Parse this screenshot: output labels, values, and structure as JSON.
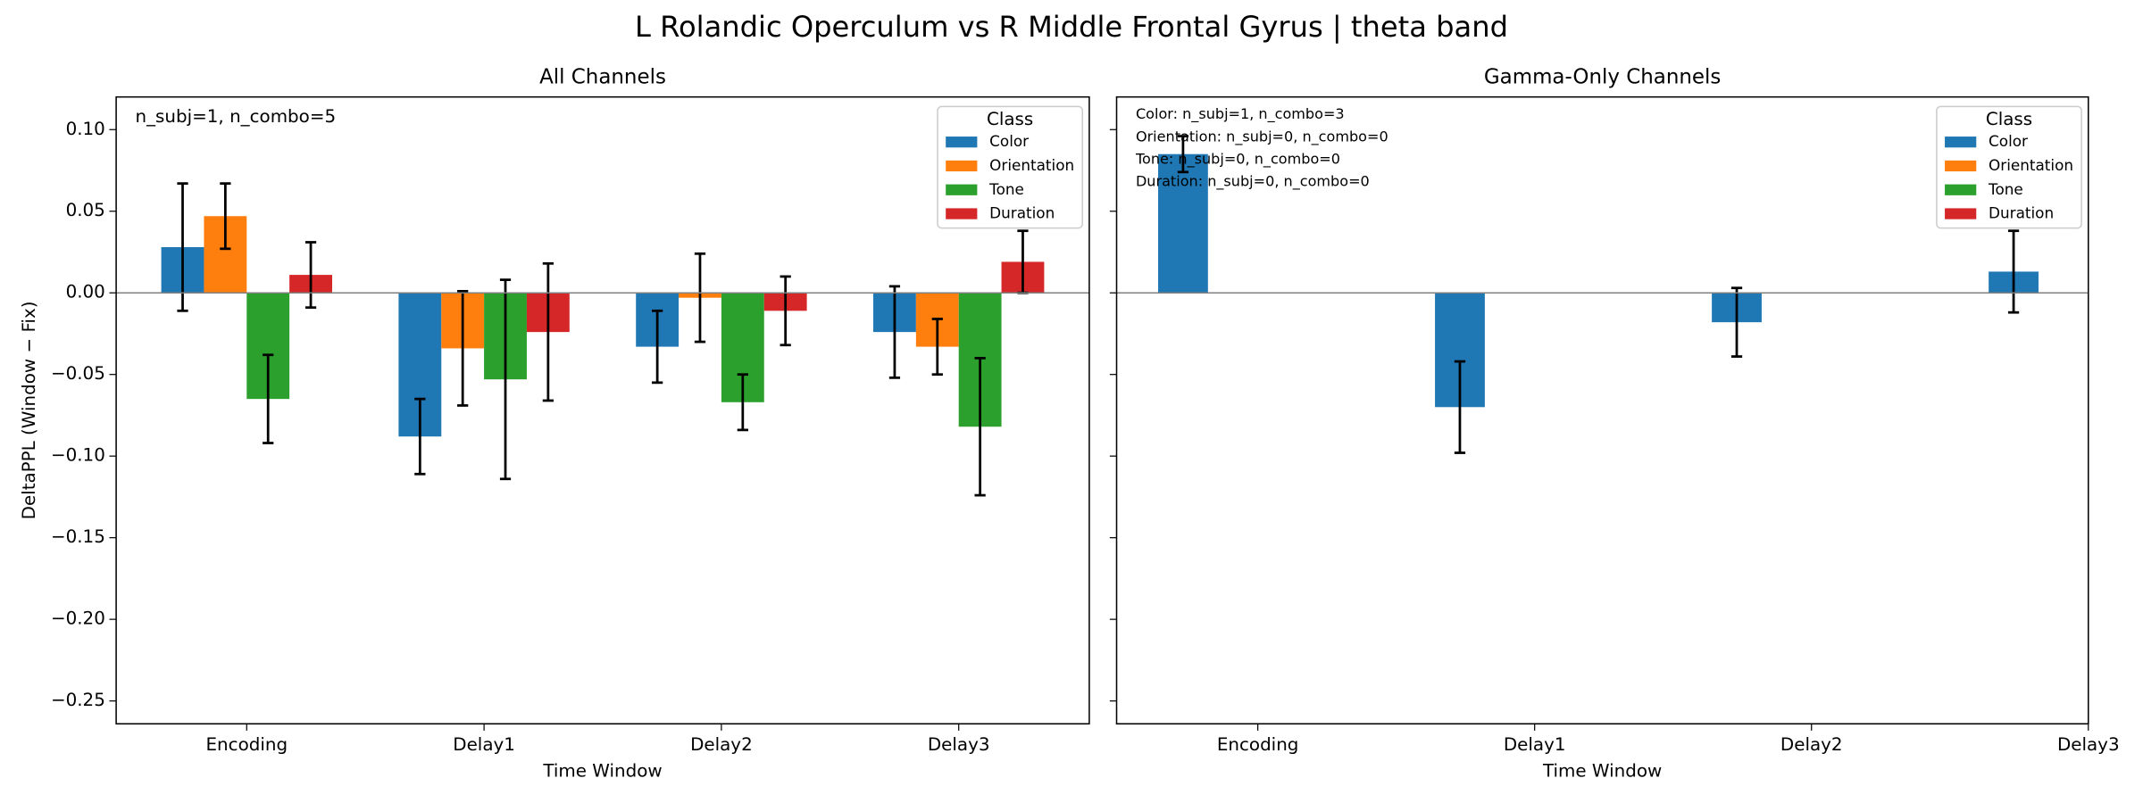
{
  "title": "L Rolandic Operculum vs R Middle Frontal Gyrus  |  theta band",
  "chart_data": [
    {
      "type": "bar",
      "title": "All Channels",
      "xlabel": "Time Window",
      "ylabel": "DeltaPPL (Window − Fix)",
      "categories": [
        "Encoding",
        "Delay1",
        "Delay2",
        "Delay3"
      ],
      "series": [
        {
          "name": "Color",
          "color": "#1f77b4",
          "values": [
            0.028,
            -0.088,
            -0.033,
            -0.024
          ],
          "errors": [
            0.039,
            0.023,
            0.022,
            0.028
          ]
        },
        {
          "name": "Orientation",
          "color": "#ff7f0e",
          "values": [
            0.047,
            -0.034,
            -0.003,
            -0.033
          ],
          "errors": [
            0.02,
            0.035,
            0.027,
            0.017
          ]
        },
        {
          "name": "Tone",
          "color": "#2ca02c",
          "values": [
            -0.065,
            -0.053,
            -0.067,
            -0.082
          ],
          "errors": [
            0.027,
            0.061,
            0.017,
            0.042
          ]
        },
        {
          "name": "Duration",
          "color": "#d62728",
          "values": [
            0.011,
            -0.024,
            -0.011,
            0.019
          ],
          "errors": [
            0.02,
            0.042,
            0.021,
            0.019
          ]
        }
      ],
      "xlim": [
        -0.55,
        3.55
      ],
      "ylim": [
        -0.264,
        0.12
      ],
      "yticks": [
        {
          "value": -0.25,
          "label": "−0.25"
        },
        {
          "value": -0.2,
          "label": "−0.20"
        },
        {
          "value": -0.15,
          "label": "−0.15"
        },
        {
          "value": -0.1,
          "label": "−0.10"
        },
        {
          "value": -0.05,
          "label": "−0.05"
        },
        {
          "value": 0,
          "label": "0.00"
        },
        {
          "value": 0.05,
          "label": "0.05"
        },
        {
          "value": 0.1,
          "label": "0.10"
        }
      ],
      "show_ytick_labels": true,
      "legend_title": "Class",
      "legend": "upper right",
      "zero_line": true,
      "annotations": [
        "n_subj=1, n_combo=5"
      ]
    },
    {
      "type": "bar",
      "title": "Gamma-Only Channels",
      "xlabel": "Time Window",
      "categories": [
        "Encoding",
        "Delay1",
        "Delay2",
        "Delay3"
      ],
      "series": [
        {
          "name": "Color",
          "color": "#1f77b4",
          "values": [
            0.085,
            -0.07,
            -0.018,
            0.013
          ],
          "errors": [
            0.011,
            0.028,
            0.021,
            0.025
          ]
        },
        {
          "name": "Orientation",
          "color": "#ff7f0e",
          "values": [
            null,
            null,
            null,
            null
          ],
          "errors": [
            null,
            null,
            null,
            null
          ]
        },
        {
          "name": "Tone",
          "color": "#2ca02c",
          "values": [
            null,
            null,
            null,
            null
          ],
          "errors": [
            null,
            null,
            null,
            null
          ]
        },
        {
          "name": "Duration",
          "color": "#d62728",
          "values": [
            null,
            null,
            null,
            null
          ],
          "errors": [
            null,
            null,
            null,
            null
          ]
        }
      ],
      "xlim": [
        -0.51,
        3.0
      ],
      "ylim": [
        -0.264,
        0.12
      ],
      "yticks": [
        {
          "value": -0.25,
          "label": "−0.25"
        },
        {
          "value": -0.2,
          "label": "−0.20"
        },
        {
          "value": -0.15,
          "label": "−0.15"
        },
        {
          "value": -0.1,
          "label": "−0.10"
        },
        {
          "value": -0.05,
          "label": "−0.05"
        },
        {
          "value": 0,
          "label": "0.00"
        },
        {
          "value": 0.05,
          "label": "0.05"
        },
        {
          "value": 0.1,
          "label": "0.10"
        }
      ],
      "show_ytick_labels": false,
      "legend_title": "Class",
      "legend": "upper right",
      "zero_line": true,
      "annotations": [
        "Color: n_subj=1, n_combo=3",
        "Orientation: n_subj=0, n_combo=0",
        "Tone: n_subj=0, n_combo=0",
        "Duration: n_subj=0, n_combo=0"
      ]
    }
  ]
}
